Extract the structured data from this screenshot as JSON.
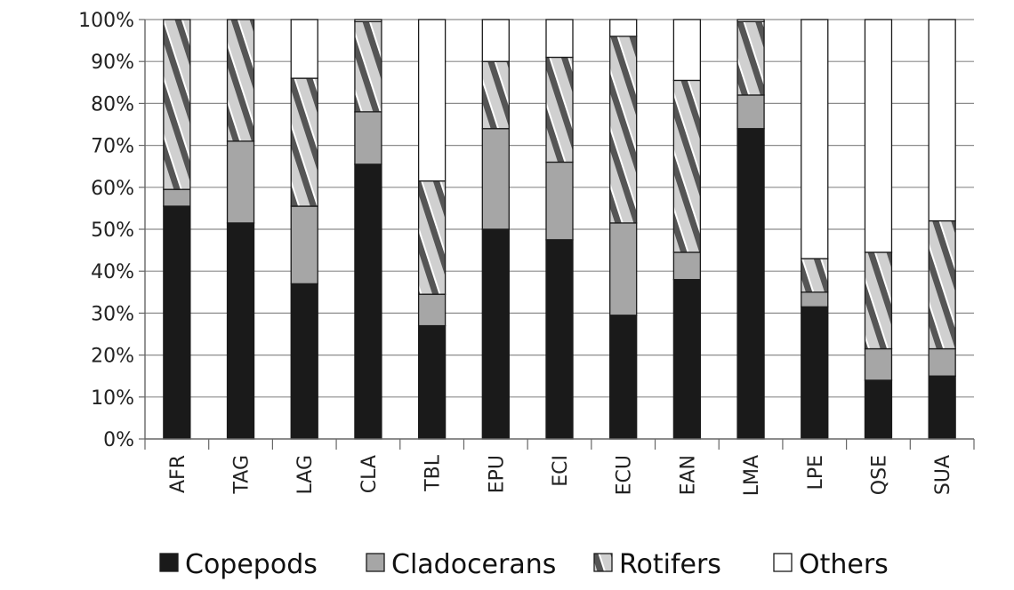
{
  "chart_data": {
    "type": "bar",
    "stacked": true,
    "normalized": true,
    "categories": [
      "AFR",
      "TAG",
      "LAG",
      "CLA",
      "TBL",
      "EPU",
      "ECI",
      "ECU",
      "EAN",
      "LMA",
      "LPE",
      "QSE",
      "SUA"
    ],
    "series": [
      {
        "name": "Copepods",
        "color": "#1a1a1a",
        "pattern": "solid",
        "values": [
          55.5,
          51.5,
          37.0,
          65.5,
          27.0,
          50.0,
          47.5,
          29.5,
          38.0,
          74.0,
          31.5,
          14.0,
          15.0
        ]
      },
      {
        "name": "Cladocerans",
        "color": "#a6a6a6",
        "pattern": "solid",
        "values": [
          4.0,
          19.5,
          18.5,
          12.5,
          7.5,
          24.0,
          18.5,
          22.0,
          6.5,
          8.0,
          3.5,
          7.5,
          6.5
        ]
      },
      {
        "name": "Rotifers",
        "color": "#7f7f7f",
        "pattern": "diagonal-hatch",
        "values": [
          40.5,
          29.0,
          30.5,
          21.5,
          27.0,
          16.0,
          25.0,
          44.5,
          41.0,
          17.5,
          8.0,
          23.0,
          30.5
        ]
      },
      {
        "name": "Others",
        "color": "#ffffff",
        "pattern": "solid",
        "values": [
          0.0,
          0.0,
          14.0,
          0.5,
          38.5,
          10.0,
          9.0,
          4.0,
          14.5,
          0.5,
          57.0,
          55.5,
          48.0
        ]
      }
    ],
    "ylim": [
      0,
      100
    ],
    "yticks": [
      "0%",
      "10%",
      "20%",
      "30%",
      "40%",
      "50%",
      "60%",
      "70%",
      "80%",
      "90%",
      "100%"
    ],
    "grid": true,
    "legend_position": "bottom",
    "title": "",
    "xlabel": "",
    "ylabel": ""
  }
}
